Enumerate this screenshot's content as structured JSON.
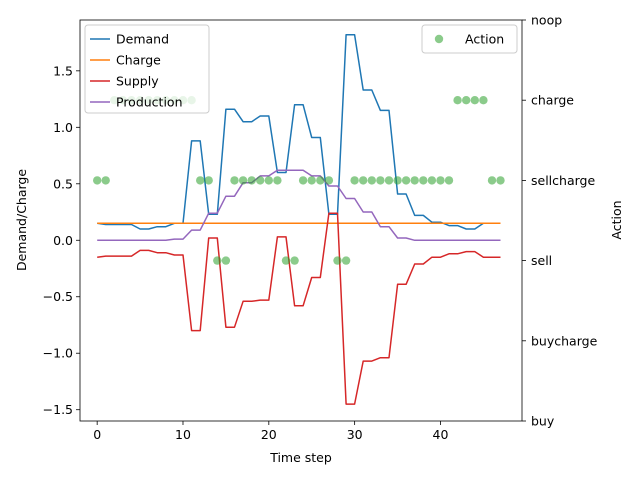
{
  "chart_data": {
    "type": "line",
    "xlabel": "Time step",
    "ylabel": "Demand/Charge",
    "y2label": "Action",
    "xlim": [
      -2,
      49.5
    ],
    "ylim": [
      -1.6,
      1.95
    ],
    "x_ticks": [
      0,
      10,
      20,
      30,
      40
    ],
    "y_ticks": [
      -1.5,
      -1.0,
      -0.5,
      0.0,
      0.5,
      1.0,
      1.5
    ],
    "y_tick_labels": [
      "−1.5",
      "−1.0",
      "−0.5",
      "0.0",
      "0.5",
      "1.0",
      "1.5"
    ],
    "y2_categories": [
      "buy",
      "buycharge",
      "sell",
      "sellcharge",
      "charge",
      "noop"
    ],
    "grid": false,
    "legend_left": "upper-left",
    "legend_right": "upper-right",
    "series": [
      {
        "name": "Demand",
        "color": "#1f77b4",
        "values": [
          0.15,
          0.14,
          0.14,
          0.14,
          0.14,
          0.1,
          0.1,
          0.12,
          0.12,
          0.15,
          0.15,
          0.88,
          0.88,
          0.23,
          0.23,
          1.16,
          1.16,
          1.05,
          1.05,
          1.1,
          1.1,
          0.6,
          0.6,
          1.2,
          1.2,
          0.91,
          0.91,
          0.23,
          0.23,
          1.82,
          1.82,
          1.33,
          1.33,
          1.15,
          1.15,
          0.41,
          0.41,
          0.22,
          0.22,
          0.16,
          0.16,
          0.13,
          0.13,
          0.1,
          0.1,
          0.15,
          0.15,
          0.15
        ]
      },
      {
        "name": "Charge",
        "color": "#ff7f0e",
        "values": [
          0.15,
          0.15,
          0.15,
          0.15,
          0.15,
          0.15,
          0.15,
          0.15,
          0.15,
          0.15,
          0.15,
          0.15,
          0.15,
          0.15,
          0.15,
          0.15,
          0.15,
          0.15,
          0.15,
          0.15,
          0.15,
          0.15,
          0.15,
          0.15,
          0.15,
          0.15,
          0.15,
          0.15,
          0.15,
          0.15,
          0.15,
          0.15,
          0.15,
          0.15,
          0.15,
          0.15,
          0.15,
          0.15,
          0.15,
          0.15,
          0.15,
          0.15,
          0.15,
          0.15,
          0.15,
          0.15,
          0.15,
          0.15
        ]
      },
      {
        "name": "Supply",
        "color": "#d62728",
        "values": [
          -0.15,
          -0.14,
          -0.14,
          -0.14,
          -0.14,
          -0.09,
          -0.09,
          -0.11,
          -0.11,
          -0.13,
          -0.13,
          -0.8,
          -0.8,
          0.02,
          0.02,
          -0.77,
          -0.77,
          -0.54,
          -0.54,
          -0.53,
          -0.53,
          0.03,
          0.03,
          -0.58,
          -0.58,
          -0.33,
          -0.33,
          0.24,
          0.24,
          -1.45,
          -1.45,
          -1.07,
          -1.07,
          -1.04,
          -1.04,
          -0.39,
          -0.39,
          -0.21,
          -0.21,
          -0.15,
          -0.15,
          -0.12,
          -0.12,
          -0.1,
          -0.1,
          -0.15,
          -0.15,
          -0.15
        ]
      },
      {
        "name": "Production",
        "color": "#9467bd",
        "values": [
          0.0,
          0.0,
          0.0,
          0.0,
          0.0,
          0.0,
          0.0,
          0.0,
          0.0,
          0.01,
          0.01,
          0.09,
          0.09,
          0.24,
          0.24,
          0.39,
          0.39,
          0.51,
          0.51,
          0.57,
          0.57,
          0.62,
          0.62,
          0.62,
          0.62,
          0.57,
          0.57,
          0.48,
          0.48,
          0.37,
          0.37,
          0.25,
          0.25,
          0.12,
          0.12,
          0.02,
          0.02,
          0.0,
          0.0,
          0.0,
          0.0,
          0.0,
          0.0,
          0.0,
          0.0,
          0.0,
          0.0,
          0.0
        ]
      }
    ],
    "actions": {
      "name": "Action",
      "color": "#2ca02c",
      "x": [
        0,
        1,
        2,
        3,
        4,
        5,
        6,
        7,
        8,
        9,
        10,
        11,
        12,
        13,
        14,
        15,
        16,
        17,
        18,
        19,
        20,
        21,
        22,
        23,
        24,
        25,
        26,
        27,
        28,
        29,
        30,
        31,
        32,
        33,
        34,
        35,
        36,
        37,
        38,
        39,
        40,
        41,
        42,
        43,
        44,
        45,
        46,
        47
      ],
      "categories": [
        "sellcharge",
        "sellcharge",
        "charge",
        "charge",
        "charge",
        "charge",
        "charge",
        "charge",
        "charge",
        "charge",
        "charge",
        "charge",
        "sellcharge",
        "sellcharge",
        "sell",
        "sell",
        "sellcharge",
        "sellcharge",
        "sellcharge",
        "sellcharge",
        "sellcharge",
        "sellcharge",
        "sell",
        "sell",
        "sellcharge",
        "sellcharge",
        "sellcharge",
        "sellcharge",
        "sell",
        "sell",
        "sellcharge",
        "sellcharge",
        "sellcharge",
        "sellcharge",
        "sellcharge",
        "sellcharge",
        "sellcharge",
        "sellcharge",
        "sellcharge",
        "sellcharge",
        "sellcharge",
        "sellcharge",
        "charge",
        "charge",
        "charge",
        "charge",
        "sellcharge",
        "sellcharge"
      ]
    }
  }
}
